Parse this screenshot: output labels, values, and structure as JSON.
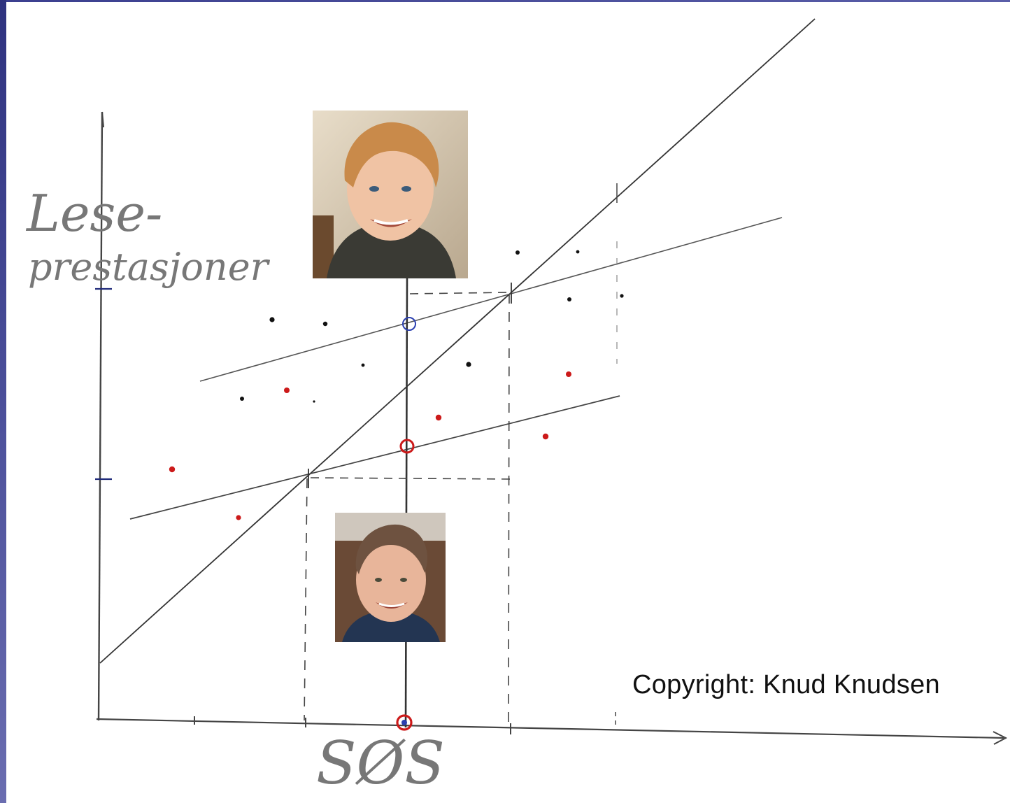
{
  "diagram": {
    "y_axis_label_line1": "Lese-",
    "y_axis_label_line2": "prestasjoner",
    "x_axis_label": "SØS",
    "copyright": "Copyright: Knud Knudsen"
  },
  "colors": {
    "background": "#ffffff",
    "frame": "#3b3f8f",
    "line": "#4a4a4a",
    "black_points": "#111111",
    "red_points": "#cc1a1a",
    "blue_marker": "#2a3fb0",
    "tick_marks": "#1f2a7a"
  },
  "photos": [
    {
      "name": "photo-boy-top",
      "icon": "portrait-photo"
    },
    {
      "name": "photo-boy-bottom",
      "icon": "portrait-photo"
    }
  ]
}
